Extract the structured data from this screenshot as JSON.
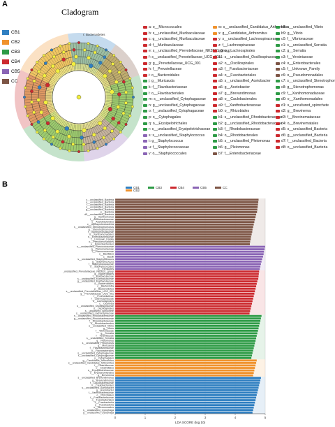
{
  "panel_a": {
    "letter": "A",
    "title": "Cladogram",
    "legend": [
      {
        "label": "CB1",
        "color": "#2f7fc1"
      },
      {
        "label": "CB2",
        "color": "#f0922c"
      },
      {
        "label": "CB3",
        "color": "#2e9b46"
      },
      {
        "label": "CB4",
        "color": "#cc2a2f"
      },
      {
        "label": "CB5",
        "color": "#8b65b5"
      },
      {
        "label": "CC",
        "color": "#7d5545"
      }
    ],
    "root_label": "r: Bacteroidetes",
    "key_columns": [
      [
        {
          "t": "a: o__Micrococcales",
          "c": "#cc2a2f"
        },
        {
          "t": "b: s__unclassified_Muribaculaceae",
          "c": "#cc2a2f"
        },
        {
          "t": "c: g__unclassified_Muribaculaceae",
          "c": "#cc2a2f"
        },
        {
          "t": "d: f__Muribaculaceae",
          "c": "#cc2a2f"
        },
        {
          "t": "e: s__unclassified_Prevotellaceae_NK3B31_group",
          "c": "#cc2a2f"
        },
        {
          "t": "f: s__unclassified_Prevotellaceae_UCG_001",
          "c": "#cc2a2f"
        },
        {
          "t": "g: g__Prevotellaceae_UCG_001",
          "c": "#cc2a2f"
        },
        {
          "t": "h: f__Prevotellaceae",
          "c": "#cc2a2f"
        },
        {
          "t": "i: o__Bacteroidales",
          "c": "#cc2a2f"
        },
        {
          "t": "j: g__Muricauda",
          "c": "#2e9b46"
        },
        {
          "t": "k: f__Flavobacteriaceae",
          "c": "#2e9b46"
        },
        {
          "t": "l: o__Flavobacteriales",
          "c": "#2e9b46"
        },
        {
          "t": "m: s__unclassified_Cytophagaceae",
          "c": "#2e9b46"
        },
        {
          "t": "n: g__unclassified_Cytophagaceae",
          "c": "#2e9b46"
        },
        {
          "t": "o: f__unclassified_Cytophagaceae",
          "c": "#2e9b46"
        },
        {
          "t": "p: o__Cytophagales",
          "c": "#2e9b46"
        },
        {
          "t": "q: o__Erysipelotrichales",
          "c": "#2e9b46"
        },
        {
          "t": "r: s__unclassified_Erysipelotrichaceae",
          "c": "#2e9b46"
        },
        {
          "t": "s: s__unclassified_Staphylococcus",
          "c": "#8b65b5"
        },
        {
          "t": "t: g__Staphylococcus",
          "c": "#8b65b5"
        },
        {
          "t": "u: f__Staphylococcaceae",
          "c": "#8b65b5"
        },
        {
          "t": "v: o__Staphylococcales",
          "c": "#8b65b5"
        }
      ],
      [
        {
          "t": "w: s__unclassified_Candidatus_Arthromitus",
          "c": "#f0922c"
        },
        {
          "t": "x: g__Candidatus_Arthromitus",
          "c": "#f0922c"
        },
        {
          "t": "y: s__unclassified_Lachnospiraceae",
          "c": "#cc2a2f"
        },
        {
          "t": "z: f__Lachnospiraceae",
          "c": "#cc2a2f"
        },
        {
          "t": "a0: o__Lachnospirales",
          "c": "#cc2a2f"
        },
        {
          "t": "a1: s__unclassified_Oscillospiraceae",
          "c": "#cc2a2f"
        },
        {
          "t": "a2: o__Oscillospirales",
          "c": "#cc2a2f"
        },
        {
          "t": "a3: f__Fusobacteriaceae",
          "c": "#cc2a2f"
        },
        {
          "t": "a4: o__Fusobacteriales",
          "c": "#cc2a2f"
        },
        {
          "t": "a5: s__unclassified_Acetobacter",
          "c": "#cc2a2f"
        },
        {
          "t": "a6: g__Acetobacter",
          "c": "#cc2a2f"
        },
        {
          "t": "a7: g__Brevundimonas",
          "c": "#cc2a2f"
        },
        {
          "t": "a8: o__Caulobacterales",
          "c": "#cc2a2f"
        },
        {
          "t": "a9: f__Xanthobacteraceae",
          "c": "#cc2a2f"
        },
        {
          "t": "b0: o__Rhizobiales",
          "c": "#cc2a2f"
        },
        {
          "t": "b1: s__unclassified_Rhodobacteraceae",
          "c": "#2e9b46"
        },
        {
          "t": "b2: g__unclassified_Rhodobacteraceae",
          "c": "#2e9b46"
        },
        {
          "t": "b3: f__Rhodobacteraceae",
          "c": "#2e9b46"
        },
        {
          "t": "b4: o__Rhodobacterales",
          "c": "#2e9b46"
        },
        {
          "t": "b5: s__unclassified_Pleiomonas",
          "c": "#2e9b46"
        },
        {
          "t": "b6: g__Pleiomonas",
          "c": "#2e9b46"
        },
        {
          "t": "b7: f__Enterobacteriaceae",
          "c": "#7d5545"
        }
      ],
      [
        {
          "t": "b8: s__unclassified_Vibrio",
          "c": "#2e9b46"
        },
        {
          "t": "b9: g__Vibrio",
          "c": "#2e9b46"
        },
        {
          "t": "c0: f__Vibrionaceae",
          "c": "#2e9b46"
        },
        {
          "t": "c1: s__unclassified_Serratia",
          "c": "#2e9b46"
        },
        {
          "t": "c2: g__Serratia",
          "c": "#2e9b46"
        },
        {
          "t": "c3: f__Yersiniaceae",
          "c": "#2e9b46"
        },
        {
          "t": "c4: o__Enterobacterales",
          "c": "#7d5545"
        },
        {
          "t": "c5: f__Unknown_Family",
          "c": "#7d5545"
        },
        {
          "t": "c6: o__Pseudomonadales",
          "c": "#7d5545"
        },
        {
          "t": "c7: s__unclassified_Stenotrophomonas",
          "c": "#2e9b46"
        },
        {
          "t": "c8: g__Stenotrophomonas",
          "c": "#2e9b46"
        },
        {
          "t": "c9: f__Xanthomonadaceae",
          "c": "#2e9b46"
        },
        {
          "t": "d0: o__Xanthomonadales",
          "c": "#2e9b46"
        },
        {
          "t": "d1: s__uncultured_spirochete",
          "c": "#cc2a2f"
        },
        {
          "t": "d2: g__Brevinema",
          "c": "#cc2a2f"
        },
        {
          "t": "d3: f__Brevinemataceae",
          "c": "#cc2a2f"
        },
        {
          "t": "d4: o__Brevinematales",
          "c": "#cc2a2f"
        },
        {
          "t": "d5: s__unclassified_Bacteria",
          "c": "#cc2a2f"
        },
        {
          "t": "d6: g__unclassified_Bacteria",
          "c": "#cc2a2f"
        },
        {
          "t": "d7: f__unclassified_Bacteria",
          "c": "#cc2a2f"
        },
        {
          "t": "d8: o__unclassified_Bacteria",
          "c": "#cc2a2f"
        }
      ]
    ]
  },
  "panel_b": {
    "letter": "B"
  },
  "chart_data": {
    "type": "bar",
    "orientation": "horizontal",
    "xlabel": "LDA SCORE (log 10)",
    "ylabel": "",
    "xlim": [
      0,
      5
    ],
    "xticks": [
      "0",
      "1",
      "2",
      "3",
      "4",
      "5"
    ],
    "grid": true,
    "legend_position": "top",
    "legend": [
      {
        "name": "CB1",
        "color": "#2f7fc1"
      },
      {
        "name": "CB2",
        "color": "#f0922c"
      },
      {
        "name": "CB3",
        "color": "#2e9b46"
      },
      {
        "name": "CB4",
        "color": "#cc2a2f"
      },
      {
        "name": "CB5",
        "color": "#8b65b5"
      },
      {
        "name": "CC",
        "color": "#7d5545"
      }
    ],
    "groups": [
      {
        "name": "CC",
        "color": "#7d5545",
        "bars": [
          {
            "label": "c__unclassified_Bacteria",
            "value": 4.78
          },
          {
            "label": "o__unclassified_Bacteria",
            "value": 4.77
          },
          {
            "label": "f__unclassified_Bacteria",
            "value": 4.76
          },
          {
            "label": "s__unclassified_Bacteria",
            "value": 4.75
          },
          {
            "label": "g__unclassified_Bacteria",
            "value": 4.74
          },
          {
            "label": "p__Bacteria",
            "value": 4.73
          },
          {
            "label": "d5__unclassified_Bacteria",
            "value": 4.7
          },
          {
            "label": "g__Xanthomonas",
            "value": 4.68
          },
          {
            "label": "f__Acetobacteraceae",
            "value": 4.66
          },
          {
            "label": "o__Acetobacterales",
            "value": 4.64
          },
          {
            "label": "c__Alphaproteobacteria",
            "value": 4.62
          },
          {
            "label": "s__unclassified_Stenotrophomonas",
            "value": 4.6
          },
          {
            "label": "g__Stenotrophomonas",
            "value": 4.58
          },
          {
            "label": "f__Xanthomonadaceae",
            "value": 4.57
          },
          {
            "label": "o__Xanthomonadales",
            "value": 4.55
          },
          {
            "label": "s__Enterobacteriaceae",
            "value": 4.53
          },
          {
            "label": "f__Unknown_Family",
            "value": 4.52
          },
          {
            "label": "o__Pseudomonadales",
            "value": 4.5
          },
          {
            "label": "o__Enterobacterales",
            "value": 4.49
          }
        ]
      },
      {
        "name": "CB5",
        "color": "#8b65b5",
        "bars": [
          {
            "label": "s__unclassified_Planococcaceae",
            "value": 5.0
          },
          {
            "label": "g__Planococcaceae",
            "value": 4.98
          },
          {
            "label": "f__Planococcaceae",
            "value": 4.96
          },
          {
            "label": "o__Bacillales",
            "value": 4.95
          },
          {
            "label": "c__Bacilli",
            "value": 4.93
          },
          {
            "label": "s__unclassified_Staphylococcus",
            "value": 4.9
          },
          {
            "label": "g__Staphylococcus",
            "value": 4.88
          },
          {
            "label": "f__Staphylococcaceae",
            "value": 4.86
          },
          {
            "label": "o__Staphylococcales",
            "value": 4.84
          },
          {
            "label": "p__Firmicutes",
            "value": 4.82
          }
        ]
      },
      {
        "name": "CB4",
        "color": "#cc2a2f",
        "bars": [
          {
            "label": "s__unclassified_Prevotellaceae_NK3B31_group",
            "value": 4.8
          },
          {
            "label": "g__Bacteroidales",
            "value": 4.79
          },
          {
            "label": "f__Muribaculaceae",
            "value": 4.78
          },
          {
            "label": "s__unclassified_Muribaculaceae",
            "value": 4.77
          },
          {
            "label": "g__unclassified_Muribaculaceae",
            "value": 4.74
          },
          {
            "label": "o__Bacteroidales",
            "value": 4.72
          },
          {
            "label": "c__Bacteroidia",
            "value": 4.7
          },
          {
            "label": "p__Bacteroidetes",
            "value": 4.68
          },
          {
            "label": "s__unclassified_Prevotellaceae_UCG_001",
            "value": 4.66
          },
          {
            "label": "g__Prevotellaceae_UCG_001",
            "value": 4.64
          },
          {
            "label": "f__Prevotellaceae",
            "value": 4.62
          },
          {
            "label": "f__Lachnospiraceae",
            "value": 4.6
          },
          {
            "label": "o__Lachnospirales",
            "value": 4.58
          },
          {
            "label": "c__Clostridia",
            "value": 4.56
          },
          {
            "label": "s__unclassified_Oscillospiraceae",
            "value": 4.54
          },
          {
            "label": "o__Oscillospirales",
            "value": 4.52
          },
          {
            "label": "s__uncultured_spirochete",
            "value": 4.5
          },
          {
            "label": "s__unclassified_Lachnospiraceae",
            "value": 4.48
          }
        ]
      },
      {
        "name": "CB3",
        "color": "#2e9b46",
        "bars": [
          {
            "label": "s__unclassified_Rhodobacteraceae",
            "value": 4.88
          },
          {
            "label": "g__unclassified_Rhodobacteraceae",
            "value": 4.86
          },
          {
            "label": "f__Rhodobacteraceae",
            "value": 4.84
          },
          {
            "label": "o__Rhodobacterales",
            "value": 4.82
          },
          {
            "label": "s__unclassified_Vibrio",
            "value": 4.8
          },
          {
            "label": "g__Vibrio",
            "value": 4.78
          },
          {
            "label": "f__Vibrionaceae",
            "value": 4.76
          },
          {
            "label": "g__Serratia",
            "value": 4.74
          },
          {
            "label": "f__Yersiniaceae",
            "value": 4.72
          },
          {
            "label": "s__unclassified_Serratia",
            "value": 4.7
          },
          {
            "label": "g__Pleiomonas",
            "value": 4.68
          },
          {
            "label": "s__unclassified_Pleiomonas",
            "value": 4.66
          },
          {
            "label": "g__Muricauda",
            "value": 4.64
          },
          {
            "label": "f__Flavobacteriaceae",
            "value": 4.62
          },
          {
            "label": "o__Flavobacteriales",
            "value": 4.6
          },
          {
            "label": "s__unclassified_Cytophagaceae",
            "value": 4.58
          },
          {
            "label": "f__unclassified_Cytophagaceae",
            "value": 4.56
          },
          {
            "label": "o__Cytophagales",
            "value": 4.54
          }
        ]
      },
      {
        "name": "CB2",
        "color": "#f0922c",
        "bars": [
          {
            "label": "g__Candidatus_Arthromitus",
            "value": 4.72
          },
          {
            "label": "s__unclassified_Candidatus_Arthromitus",
            "value": 4.7
          },
          {
            "label": "f__Clostridiaceae",
            "value": 4.68
          },
          {
            "label": "o__Clostridiales",
            "value": 4.66
          },
          {
            "label": "s__Erysipelotrichaceae",
            "value": 4.64
          },
          {
            "label": "o__Erysipelotrichales",
            "value": 4.62
          },
          {
            "label": "g__Brevinema",
            "value": 4.6
          }
        ]
      },
      {
        "name": "CB1",
        "color": "#2f7fc1",
        "bars": [
          {
            "label": "s__unclassified_Brevundimonas",
            "value": 4.86
          },
          {
            "label": "g__Brevundimonas",
            "value": 4.84
          },
          {
            "label": "f__Caulobacteraceae",
            "value": 4.82
          },
          {
            "label": "o__Caulobacterales",
            "value": 4.8
          },
          {
            "label": "s__unclassified_Acetobacter",
            "value": 4.78
          },
          {
            "label": "g__Acetobacter",
            "value": 4.76
          },
          {
            "label": "f__Xanthobacteraceae",
            "value": 4.74
          },
          {
            "label": "o__Rhizobiales",
            "value": 4.72
          },
          {
            "label": "f__Fusobacteriaceae",
            "value": 4.7
          },
          {
            "label": "o__Fusobacteriales",
            "value": 4.68
          },
          {
            "label": "c__Fusobacteriia",
            "value": 4.66
          },
          {
            "label": "p__Fusobacteria",
            "value": 4.64
          },
          {
            "label": "o__Micrococcales",
            "value": 4.62
          },
          {
            "label": "s__unclassified_Cytophaga",
            "value": 4.6
          },
          {
            "label": "g__unclassified_Cytophaga",
            "value": 4.58
          }
        ]
      }
    ]
  }
}
